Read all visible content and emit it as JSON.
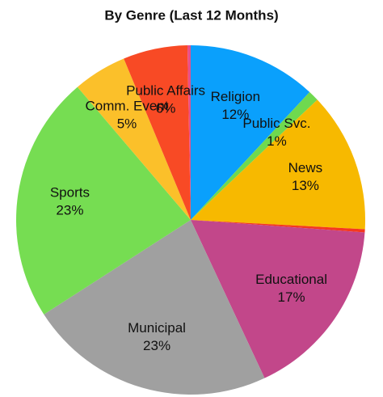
{
  "chart_data": {
    "type": "pie",
    "title": "By Genre (Last 12 Months)",
    "categories": [
      "Religion",
      "Public Svc.",
      "News",
      null,
      "Educational",
      "Municipal",
      "Sports",
      "Comm. Event",
      "Public Affairs",
      null
    ],
    "values": [
      12,
      1,
      13,
      0.3,
      17,
      23,
      23,
      5,
      6,
      0.3
    ],
    "value_labels": [
      "12%",
      "1%",
      "13%",
      null,
      "17%",
      "23%",
      "23%",
      "5%",
      "6%",
      null
    ],
    "colors": [
      "#0aa0fc",
      "#6fd94f",
      "#f7b900",
      "#f5381f",
      "#c2478a",
      "#a0a0a0",
      "#76dd52",
      "#fbc02a",
      "#f84a25",
      "#e8508a"
    ]
  }
}
